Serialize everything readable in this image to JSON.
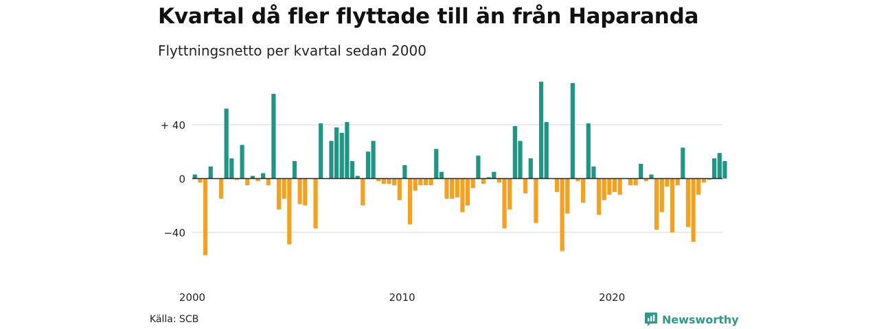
{
  "header": {
    "title": "Kvartal då fler flyttade till än från Haparanda",
    "subtitle": "Flyttningsnetto per kvartal sedan 2000"
  },
  "footer": {
    "source": "Källa: SCB",
    "brand": "Newsworthy",
    "brand_icon": "newsworthy-logo-icon"
  },
  "colors": {
    "positive": "#1f9683",
    "negative": "#f5a11e",
    "grid": "#dddddd",
    "zero": "#222222"
  },
  "chart_data": {
    "type": "bar",
    "x_start": "2000 Q1",
    "y_ticks": [
      40,
      0,
      -40
    ],
    "y_tick_labels": [
      "+ 40",
      "0",
      "−40"
    ],
    "x_ticks": [
      2000,
      2010,
      2020
    ],
    "x_tick_labels": [
      "2000",
      "2010",
      "2020"
    ],
    "ylim": [
      -70,
      72
    ],
    "grid": true,
    "values": [
      3,
      -3,
      -57,
      9,
      0,
      -15,
      52,
      15,
      -1,
      25,
      -5,
      2,
      -2,
      4,
      -5,
      63,
      -23,
      -15,
      -49,
      13,
      -19,
      -20,
      0,
      -37,
      41,
      0,
      28,
      38,
      34,
      42,
      13,
      2,
      -20,
      20,
      28,
      -2,
      -4,
      -4,
      -5,
      -16,
      10,
      -34,
      -9,
      -5,
      -5,
      -5,
      22,
      5,
      -15,
      -15,
      -14,
      -25,
      -20,
      -7,
      17,
      -4,
      1,
      5,
      -3,
      -37,
      -23,
      39,
      28,
      -11,
      15,
      -33,
      72,
      42,
      0,
      -10,
      -54,
      -26,
      71,
      -2,
      -18,
      41,
      9,
      -27,
      -16,
      -12,
      -10,
      -12,
      0,
      -5,
      -5,
      11,
      -2,
      3,
      -38,
      -25,
      -6,
      -40,
      -5,
      23,
      -36,
      -47,
      -12,
      -3,
      -1,
      15,
      19,
      13
    ]
  }
}
